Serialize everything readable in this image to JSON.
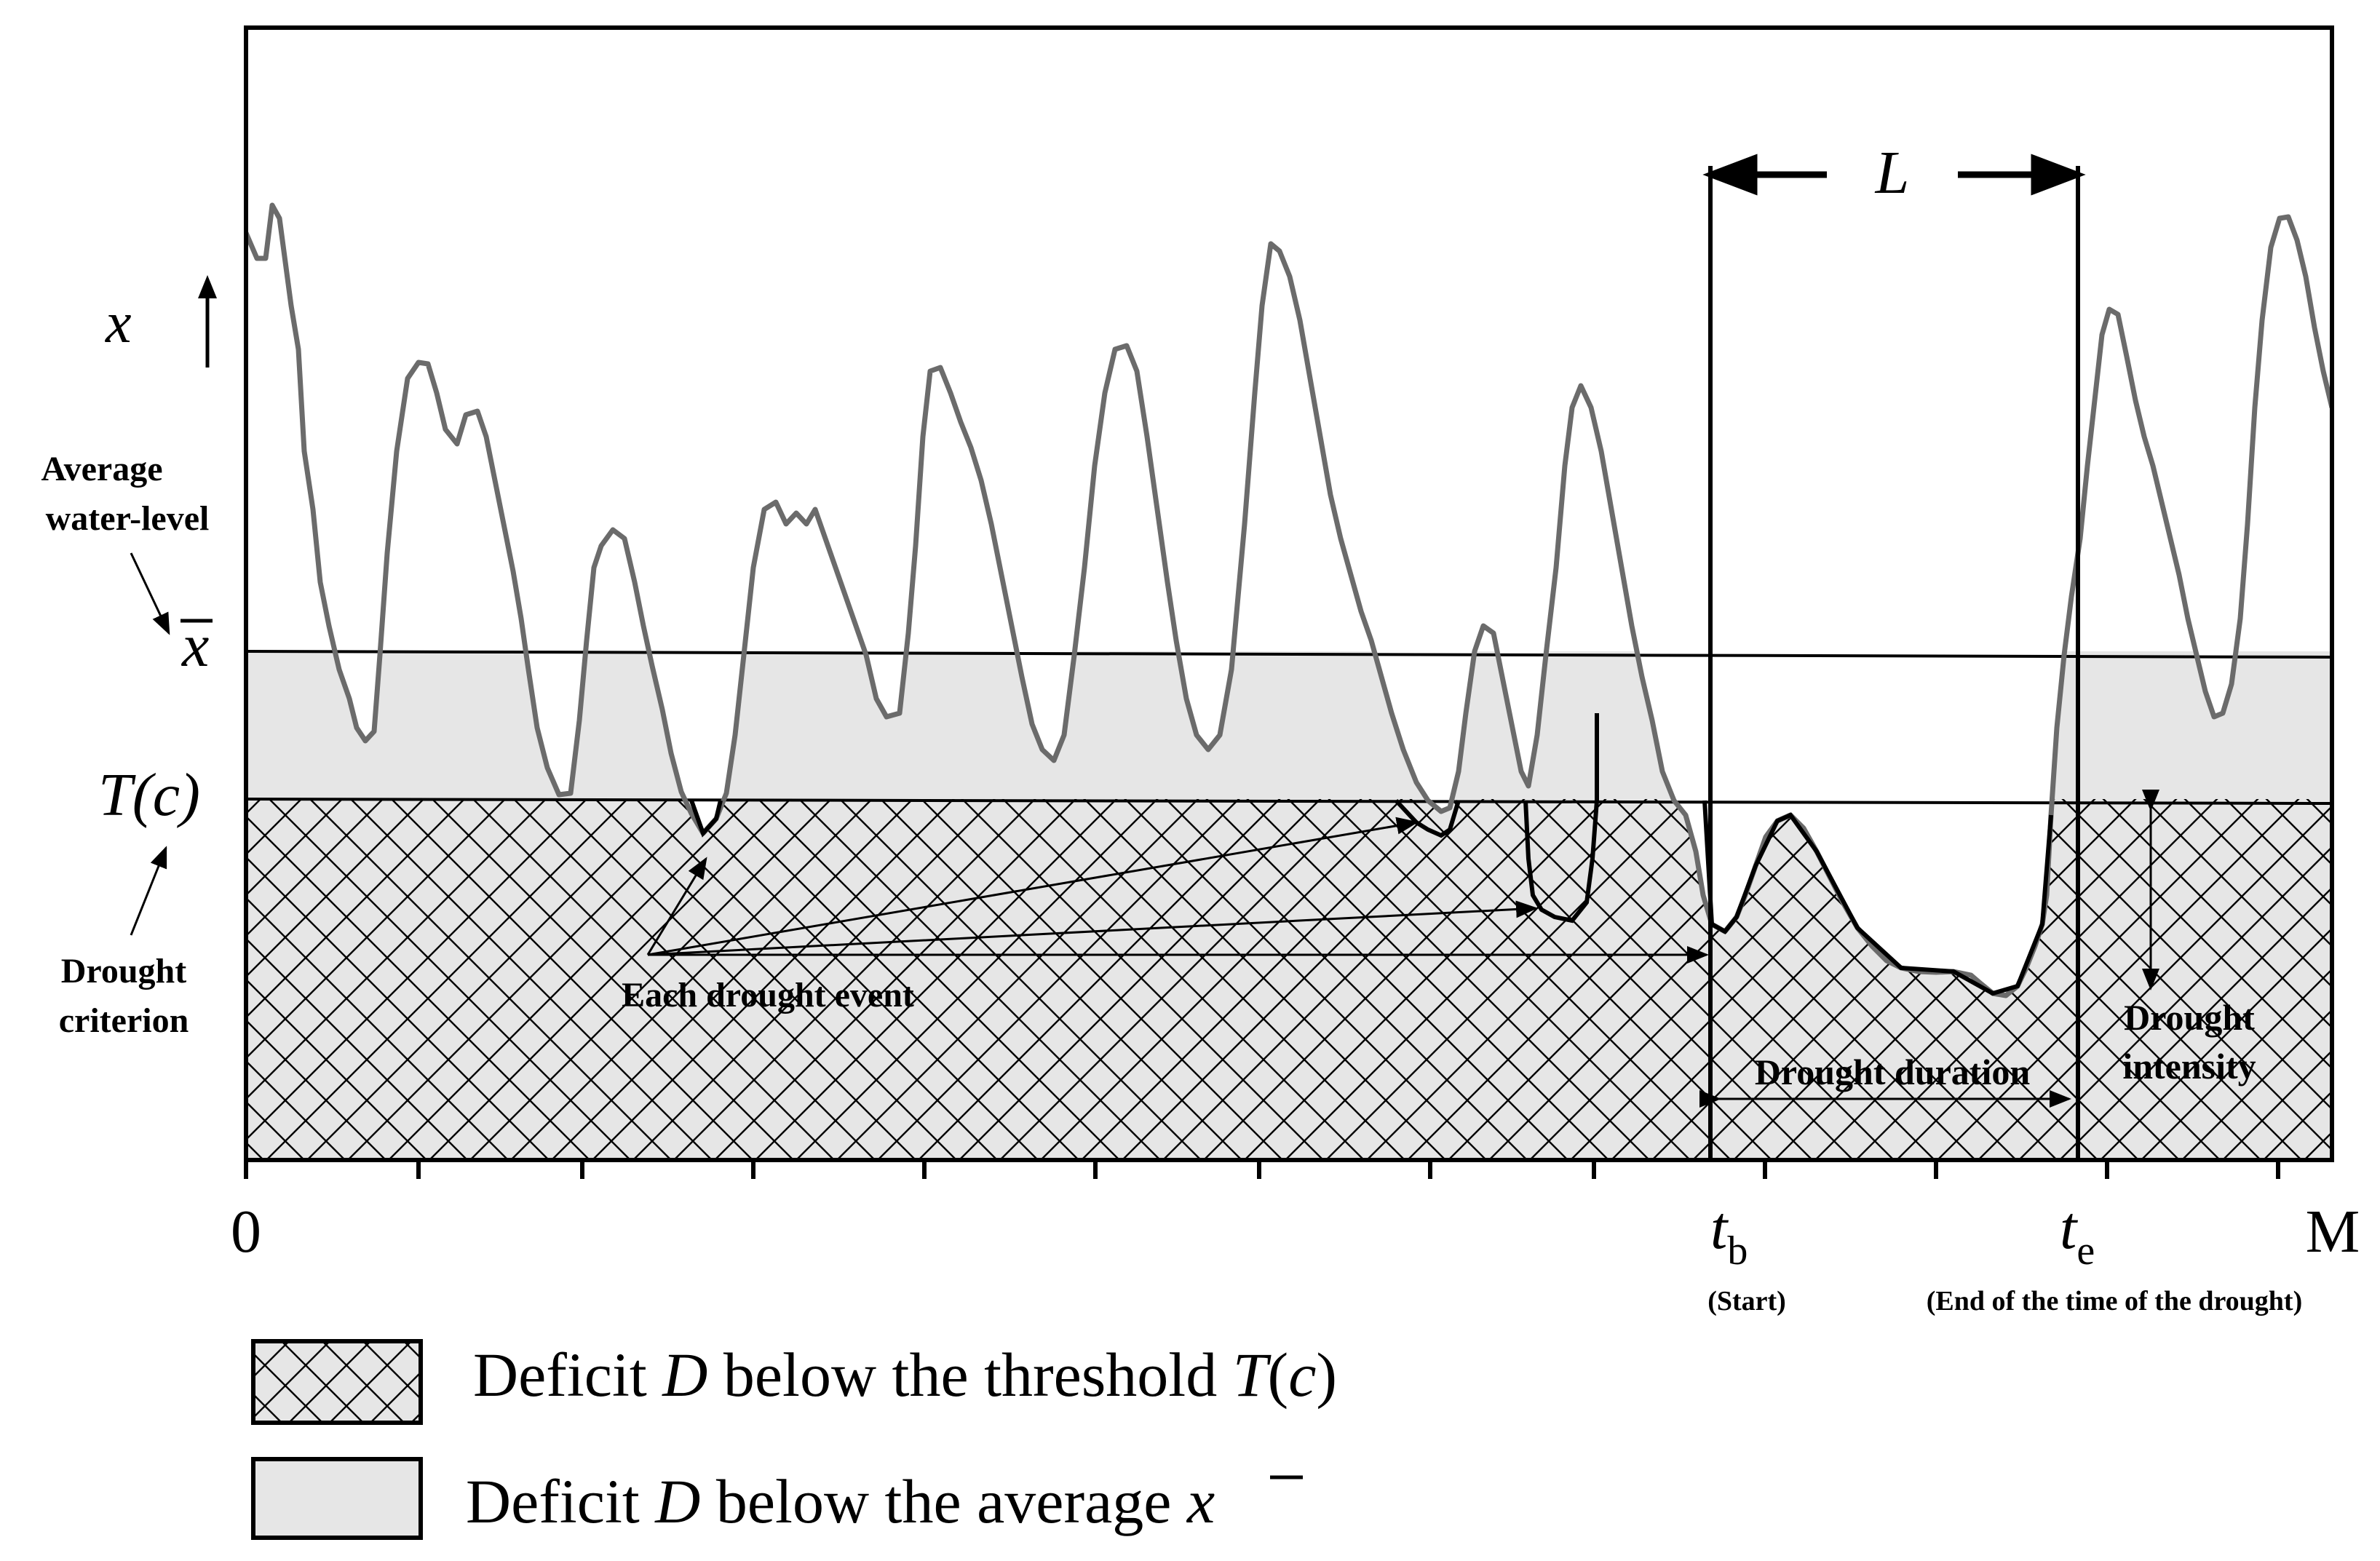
{
  "axis": {
    "y_var": "x",
    "origin": "0",
    "end_label": "M",
    "tb_main": "t",
    "tb_sub": "b",
    "te_main": "t",
    "te_sub": "e",
    "start_note": "(Start)",
    "end_note": "(End of the time of the drought)"
  },
  "left_labels": {
    "average_line1": "Average",
    "average_line2": "water-level",
    "xbar": "x",
    "threshold": "T(c)",
    "criterion_line1": "Drought",
    "criterion_line2": "criterion"
  },
  "annotations": {
    "L": "L",
    "each_event": "Each drought event",
    "duration": "Drought duration",
    "intensity_line1": "Drought",
    "intensity_line2": "intensity"
  },
  "legend": {
    "threshold_deficit_pre": "Deficit ",
    "threshold_deficit_D": "D",
    "threshold_deficit_mid": " below the threshold ",
    "threshold_deficit_T": "T",
    "threshold_deficit_open": "(",
    "threshold_deficit_c": "c",
    "threshold_deficit_close": ")",
    "average_deficit_pre": "Deficit ",
    "average_deficit_D": "D",
    "average_deficit_mid": " below the average ",
    "average_deficit_x": "x"
  },
  "colors": {
    "series": "#6b6b6b",
    "shade": "#e6e6e6",
    "ink": "#000000"
  }
}
